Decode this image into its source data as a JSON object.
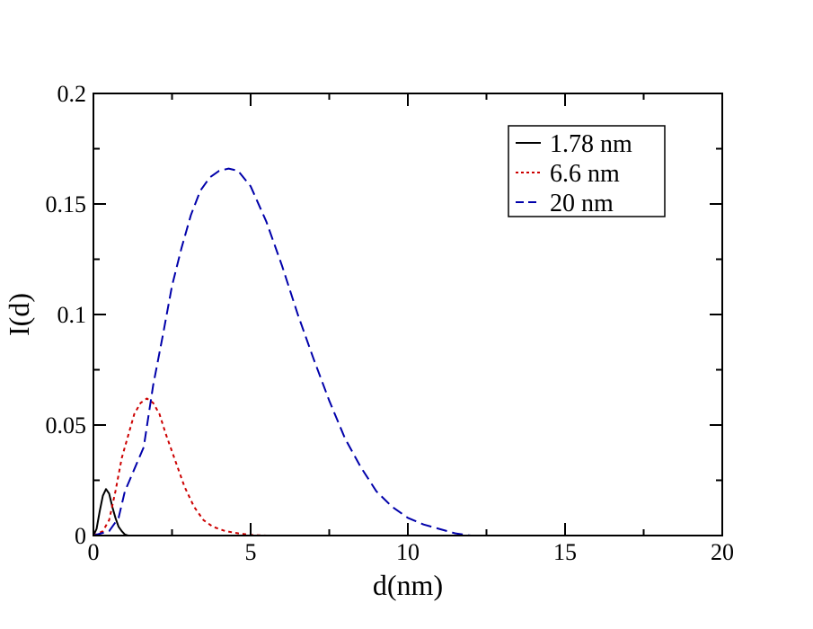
{
  "chart_data": {
    "type": "line",
    "title": "",
    "xlabel": "d(nm)",
    "ylabel": "I(d)",
    "xlim": [
      0,
      20
    ],
    "ylim": [
      0,
      0.2
    ],
    "xticks": [
      0,
      5,
      10,
      15,
      20
    ],
    "xtick_labels": [
      "0",
      "5",
      "10",
      "15",
      "20"
    ],
    "yticks": [
      0,
      0.05,
      0.1,
      0.15,
      0.2
    ],
    "ytick_labels": [
      "0",
      "0.05",
      "0.1",
      "0.15",
      "0.2"
    ],
    "grid": false,
    "legend_position": "top-right",
    "series": [
      {
        "name": "1.78 nm",
        "color": "#000000",
        "dash": "solid",
        "x": [
          0.0,
          0.1,
          0.2,
          0.3,
          0.4,
          0.5,
          0.6,
          0.7,
          0.8,
          0.9,
          1.0,
          1.1
        ],
        "y": [
          0.0,
          0.003,
          0.011,
          0.018,
          0.021,
          0.019,
          0.013,
          0.008,
          0.004,
          0.002,
          0.0005,
          0.0
        ]
      },
      {
        "name": "6.6 nm",
        "color": "#cc0000",
        "dash": "dotted",
        "x": [
          0.0,
          0.3,
          0.5,
          0.7,
          0.9,
          1.1,
          1.3,
          1.5,
          1.7,
          1.9,
          2.1,
          2.3,
          2.6,
          2.9,
          3.2,
          3.5,
          3.8,
          4.2,
          4.6,
          5.0,
          5.5
        ],
        "y": [
          0.0,
          0.002,
          0.007,
          0.02,
          0.035,
          0.045,
          0.055,
          0.06,
          0.062,
          0.06,
          0.055,
          0.046,
          0.034,
          0.022,
          0.013,
          0.007,
          0.004,
          0.002,
          0.001,
          0.0003,
          0.0
        ]
      },
      {
        "name": "20 nm",
        "color": "#0000aa",
        "dash": "dashed",
        "x": [
          0.0,
          0.5,
          0.8,
          1.0,
          1.3,
          1.6,
          1.9,
          2.2,
          2.5,
          2.8,
          3.1,
          3.4,
          3.7,
          4.0,
          4.3,
          4.6,
          5.0,
          5.5,
          6.0,
          6.5,
          7.0,
          7.5,
          8.0,
          8.5,
          9.0,
          9.5,
          10.0,
          10.5,
          11.0,
          11.5,
          12.0
        ],
        "y": [
          0.0,
          0.002,
          0.008,
          0.02,
          0.03,
          0.04,
          0.068,
          0.09,
          0.113,
          0.13,
          0.145,
          0.156,
          0.162,
          0.165,
          0.166,
          0.165,
          0.158,
          0.142,
          0.122,
          0.1,
          0.08,
          0.061,
          0.044,
          0.031,
          0.02,
          0.013,
          0.008,
          0.005,
          0.003,
          0.001,
          0.0
        ]
      }
    ]
  }
}
